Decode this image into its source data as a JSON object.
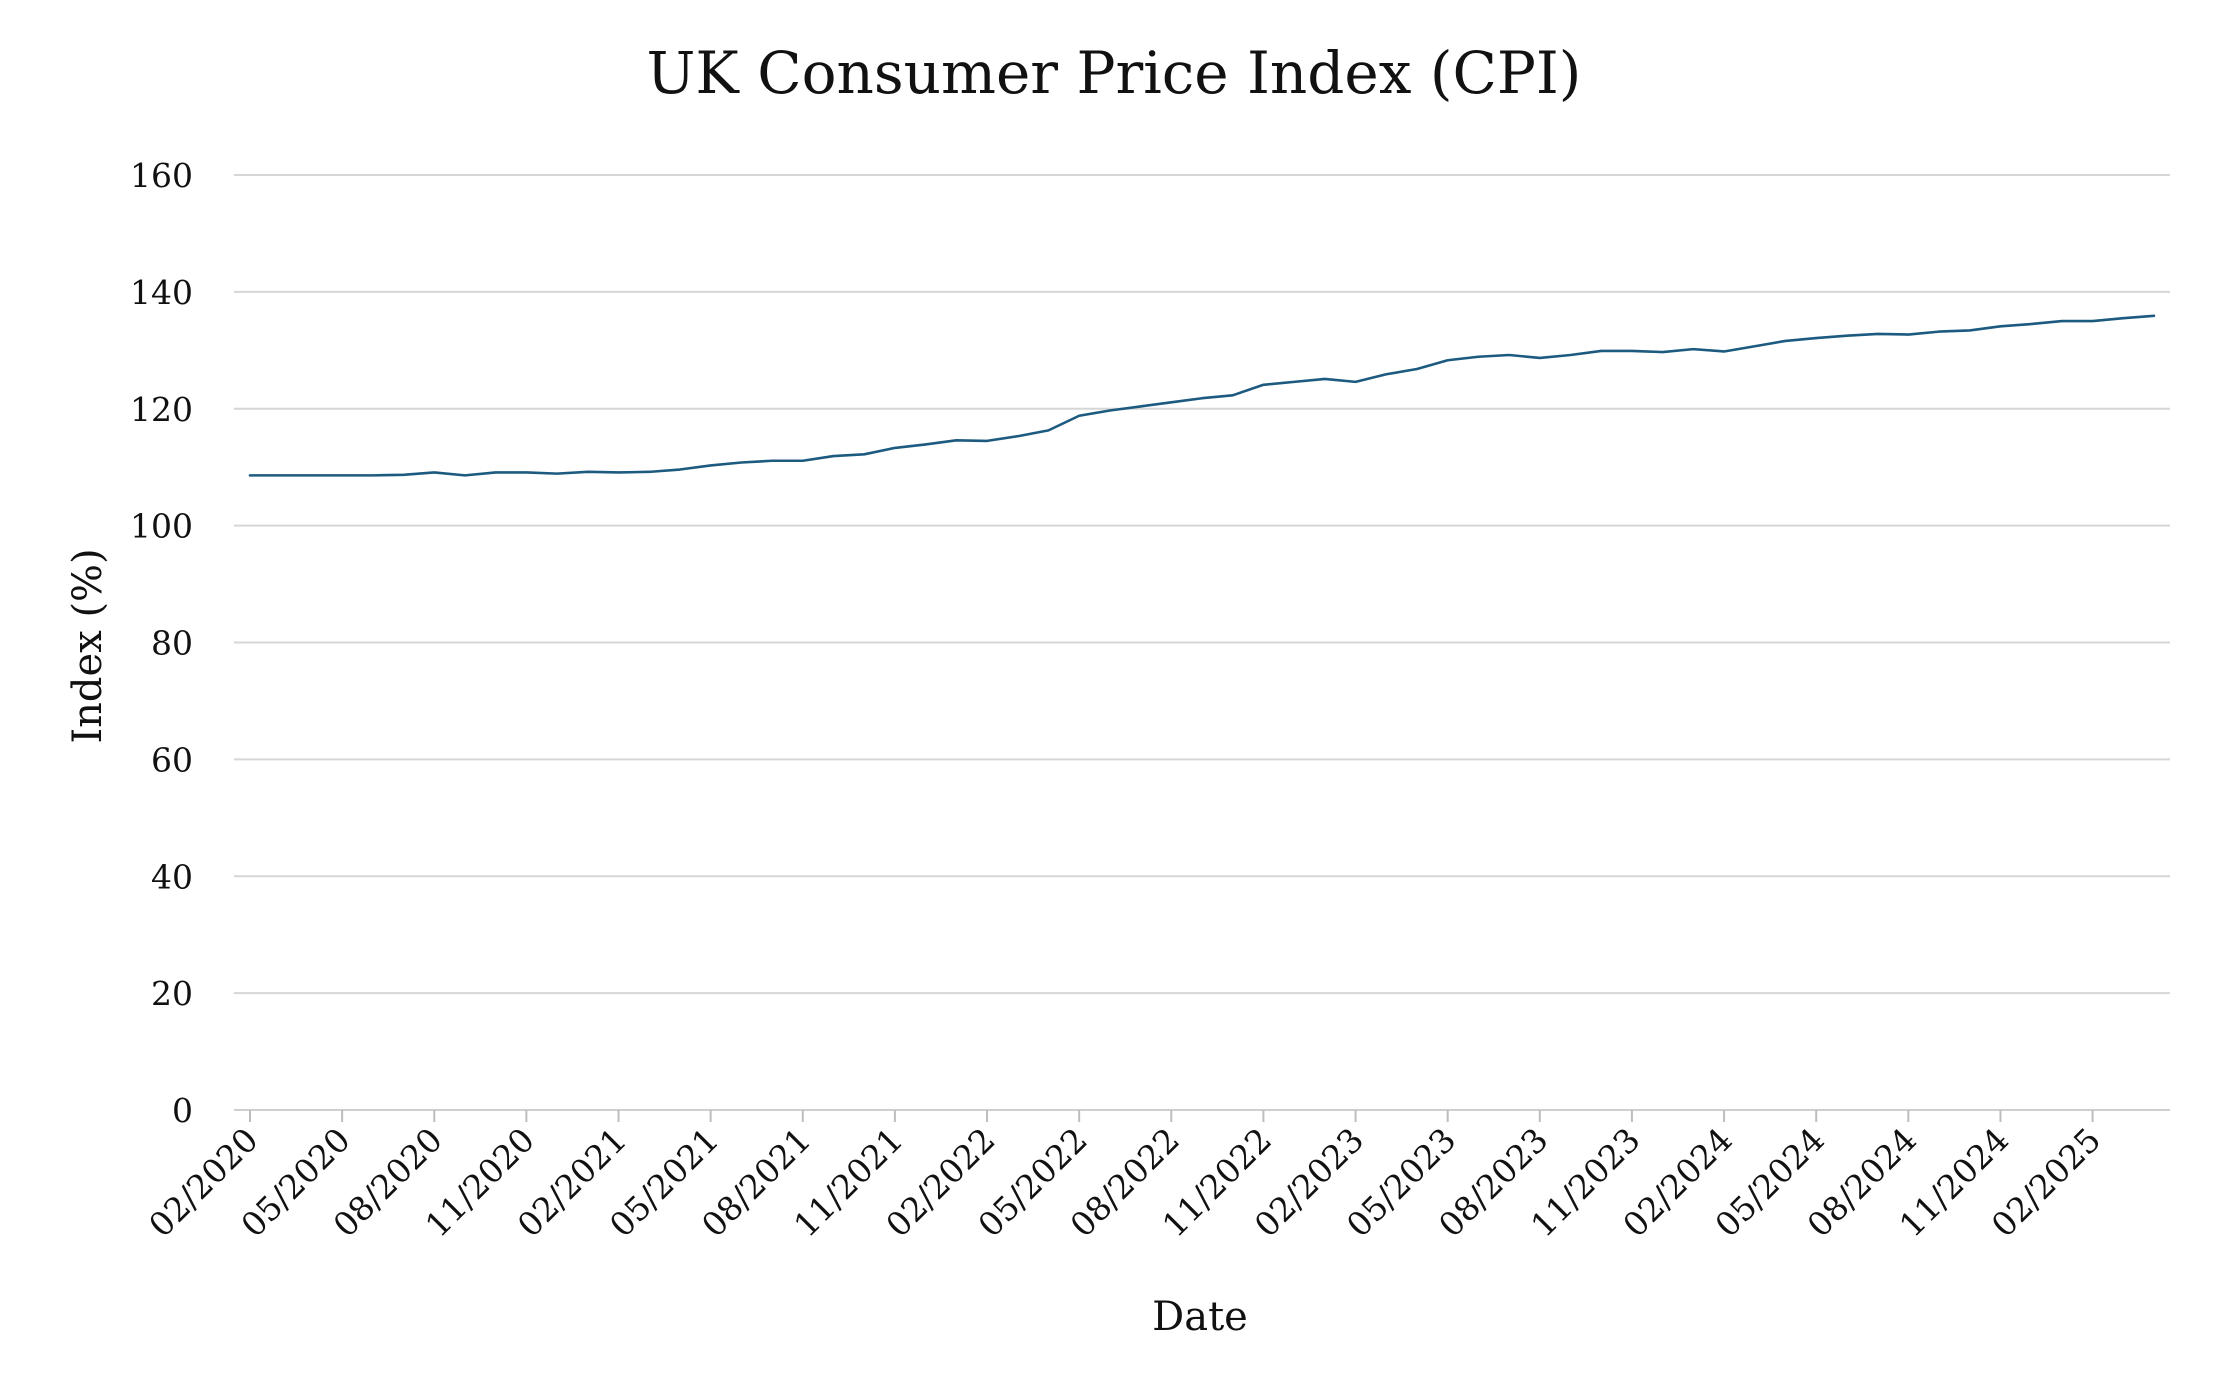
{
  "chart_data": {
    "type": "line",
    "title": "UK Consumer Price Index (CPI)",
    "xlabel": "Date",
    "ylabel": "Index (%)",
    "ylim": [
      0,
      160
    ],
    "yticks": [
      0,
      20,
      40,
      60,
      80,
      100,
      120,
      140,
      160
    ],
    "xlim": [
      "2020-02",
      "2025-04"
    ],
    "xtick_labels": [
      "02/2020",
      "05/2020",
      "08/2020",
      "11/2020",
      "02/2021",
      "05/2021",
      "08/2021",
      "11/2021",
      "02/2022",
      "05/2022",
      "08/2022",
      "11/2022",
      "02/2023",
      "05/2023",
      "08/2023",
      "11/2023",
      "02/2024",
      "05/2024",
      "08/2024",
      "11/2024",
      "02/2025"
    ],
    "grid": "horizontal",
    "colors": {
      "series": "#1d5a80",
      "grid": "#d6d6d6"
    },
    "x": [
      "2020-02",
      "2020-03",
      "2020-04",
      "2020-05",
      "2020-06",
      "2020-07",
      "2020-08",
      "2020-09",
      "2020-10",
      "2020-11",
      "2020-12",
      "2021-01",
      "2021-02",
      "2021-03",
      "2021-04",
      "2021-05",
      "2021-06",
      "2021-07",
      "2021-08",
      "2021-09",
      "2021-10",
      "2021-11",
      "2021-12",
      "2022-01",
      "2022-02",
      "2022-03",
      "2022-04",
      "2022-05",
      "2022-06",
      "2022-07",
      "2022-08",
      "2022-09",
      "2022-10",
      "2022-11",
      "2022-12",
      "2023-01",
      "2023-02",
      "2023-03",
      "2023-04",
      "2023-05",
      "2023-06",
      "2023-07",
      "2023-08",
      "2023-09",
      "2023-10",
      "2023-11",
      "2023-12",
      "2024-01",
      "2024-02",
      "2024-03",
      "2024-04",
      "2024-05",
      "2024-06",
      "2024-07",
      "2024-08",
      "2024-09",
      "2024-10",
      "2024-11",
      "2024-12",
      "2025-01",
      "2025-02",
      "2025-03",
      "2025-04"
    ],
    "series": [
      {
        "values": [
          108.6,
          108.6,
          108.6,
          108.6,
          108.6,
          108.7,
          109.1,
          108.6,
          109.1,
          109.1,
          108.9,
          109.2,
          109.1,
          109.2,
          109.6,
          110.3,
          110.8,
          111.1,
          111.1,
          111.9,
          112.2,
          113.3,
          113.9,
          114.6,
          114.5,
          115.3,
          116.3,
          118.8,
          119.7,
          120.4,
          121.1,
          121.8,
          122.3,
          124.1,
          124.6,
          125.1,
          124.6,
          125.9,
          126.8,
          128.3,
          128.9,
          129.2,
          128.7,
          129.2,
          129.9,
          129.9,
          129.7,
          130.2,
          129.8,
          130.7,
          131.6,
          132.1,
          132.5,
          132.8,
          132.7,
          133.2,
          133.4,
          134.1,
          134.5,
          135.0,
          135.0,
          135.5,
          135.9
        ]
      }
    ]
  }
}
